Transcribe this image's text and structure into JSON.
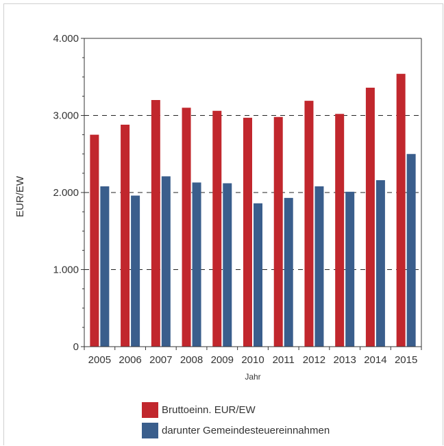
{
  "chart_data": {
    "type": "bar",
    "title": "",
    "xlabel": "Jahr",
    "ylabel": "EUR/EW",
    "ylim": [
      0,
      4000
    ],
    "yticks": [
      "0",
      "1.000",
      "2.000",
      "3.000",
      "4.000"
    ],
    "ytick_values": [
      0,
      1000,
      2000,
      3000,
      4000
    ],
    "grid": "horizontal dashed at 1000, 2000, 3000",
    "legend_position": "bottom",
    "categories": [
      "2005",
      "2006",
      "2007",
      "2008",
      "2009",
      "2010",
      "2011",
      "2012",
      "2013",
      "2014",
      "2015"
    ],
    "series": [
      {
        "name": "Bruttoeinn. EUR/EW",
        "color": "#c1272d",
        "values": [
          2750,
          2880,
          3200,
          3100,
          3060,
          2970,
          2980,
          3190,
          3020,
          3360,
          3540
        ]
      },
      {
        "name": "darunter Gemeindesteuereinnahmen",
        "color": "#3a5e8c",
        "values": [
          2080,
          1960,
          2210,
          2130,
          2120,
          1860,
          1930,
          2080,
          2010,
          2160,
          2500
        ]
      }
    ]
  }
}
